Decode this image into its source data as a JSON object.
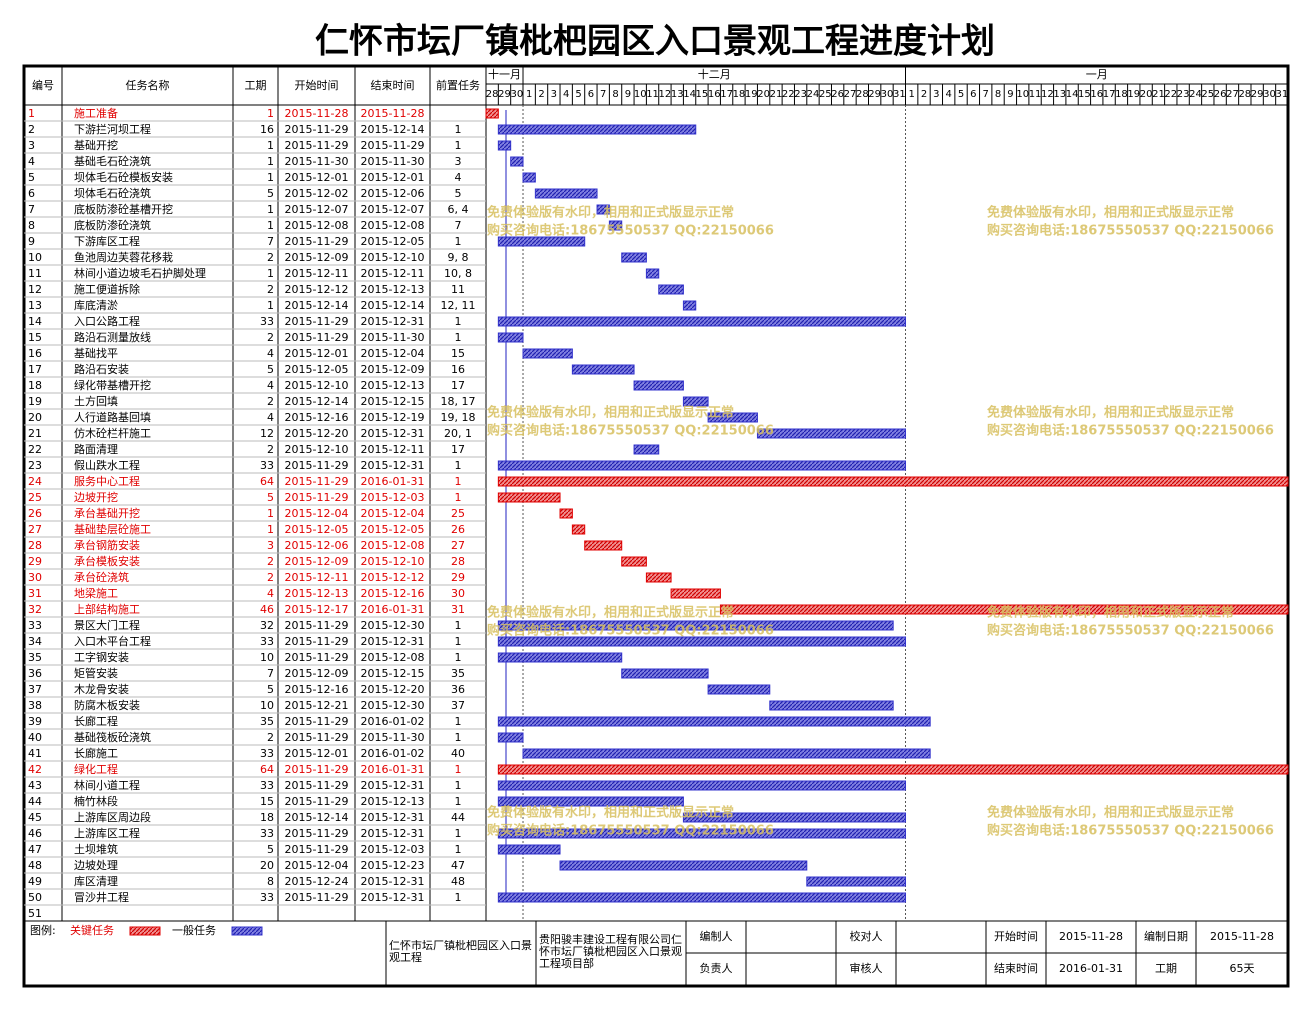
{
  "title": "仁怀市坛厂镇枇杷园区入口景观工程进度计划",
  "table": {
    "headers": [
      "编号",
      "任务名称",
      "工期",
      "开始时间",
      "结束时间",
      "前置任务"
    ],
    "rows": [
      {
        "cells": [
          1,
          "施工准备",
          1,
          "2015-11-28",
          "2015-11-28"
        ],
        "color": "#e00000"
      },
      {
        "cells": [
          2,
          "下游拦河坝工程",
          16,
          "2015-11-29",
          "2015-12-14",
          1
        ],
        "color": "#3333cc"
      },
      {
        "cells": [
          3,
          "基础开挖",
          1,
          "2015-11-29",
          "2015-11-29",
          1
        ],
        "color": "#3333cc"
      },
      {
        "cells": [
          4,
          "基础毛石砼浇筑",
          1,
          "2015-11-30",
          "2015-11-30",
          3
        ],
        "color": "#3333cc"
      },
      {
        "cells": [
          5,
          "坝体毛石砼模板安装",
          1,
          "2015-12-01",
          "2015-12-01",
          4
        ],
        "color": "#3333cc"
      },
      {
        "cells": [
          6,
          "坝体毛石砼浇筑",
          5,
          "2015-12-02",
          "2015-12-06",
          5
        ],
        "color": "#3333cc"
      },
      {
        "cells": [
          7,
          "底板防渗砼基槽开挖",
          1,
          "2015-12-07",
          "2015-12-07",
          "6, 4"
        ],
        "color": "#3333cc"
      },
      {
        "cells": [
          8,
          "底板防渗砼浇筑",
          1,
          "2015-12-08",
          "2015-12-08",
          7
        ],
        "color": "#3333cc"
      },
      {
        "cells": [
          9,
          "下游库区工程",
          7,
          "2015-11-29",
          "2015-12-05",
          1
        ],
        "color": "#3333cc"
      },
      {
        "cells": [
          10,
          "鱼池周边芙蓉花移栽",
          2,
          "2015-12-09",
          "2015-12-10",
          "9, 8"
        ],
        "color": "#3333cc"
      },
      {
        "cells": [
          11,
          "林间小道边坡毛石护脚处理",
          1,
          "2015-12-11",
          "2015-12-11",
          "10, 8"
        ],
        "color": "#3333cc"
      },
      {
        "cells": [
          12,
          "施工便道拆除",
          2,
          "2015-12-12",
          "2015-12-13",
          11
        ],
        "color": "#3333cc"
      },
      {
        "cells": [
          13,
          "库底清淤",
          1,
          "2015-12-14",
          "2015-12-14",
          "12, 11"
        ],
        "color": "#3333cc"
      },
      {
        "cells": [
          14,
          "入口公路工程",
          33,
          "2015-11-29",
          "2015-12-31",
          1
        ],
        "color": "#3333cc"
      },
      {
        "cells": [
          15,
          "路沿石测量放线",
          2,
          "2015-11-29",
          "2015-11-30",
          1
        ],
        "color": "#3333cc"
      },
      {
        "cells": [
          16,
          "基础找平",
          4,
          "2015-12-01",
          "2015-12-04",
          15
        ],
        "color": "#3333cc"
      },
      {
        "cells": [
          17,
          "路沿石安装",
          5,
          "2015-12-05",
          "2015-12-09",
          16
        ],
        "color": "#3333cc"
      },
      {
        "cells": [
          18,
          "绿化带基槽开挖",
          4,
          "2015-12-10",
          "2015-12-13",
          17
        ],
        "color": "#3333cc"
      },
      {
        "cells": [
          19,
          "土方回填",
          2,
          "2015-12-14",
          "2015-12-15",
          "18, 17"
        ],
        "color": "#3333cc"
      },
      {
        "cells": [
          20,
          "人行道路基回填",
          4,
          "2015-12-16",
          "2015-12-19",
          "19, 18"
        ],
        "color": "#3333cc"
      },
      {
        "cells": [
          21,
          "仿木砼栏杆施工",
          12,
          "2015-12-20",
          "2015-12-31",
          "20, 1"
        ],
        "color": "#3333cc"
      },
      {
        "cells": [
          22,
          "路面清理",
          2,
          "2015-12-10",
          "2015-12-11",
          17
        ],
        "color": "#3333cc"
      },
      {
        "cells": [
          23,
          "假山跌水工程",
          33,
          "2015-11-29",
          "2015-12-31",
          1
        ],
        "color": "#3333cc"
      },
      {
        "cells": [
          24,
          "服务中心工程",
          64,
          "2015-11-29",
          "2016-01-31",
          1
        ],
        "color": "#e00000"
      },
      {
        "cells": [
          25,
          "边坡开挖",
          5,
          "2015-11-29",
          "2015-12-03",
          1
        ],
        "color": "#e00000"
      },
      {
        "cells": [
          26,
          "承台基础开挖",
          1,
          "2015-12-04",
          "2015-12-04",
          25
        ],
        "color": "#e00000"
      },
      {
        "cells": [
          27,
          "基础垫层砼施工",
          1,
          "2015-12-05",
          "2015-12-05",
          26
        ],
        "color": "#e00000"
      },
      {
        "cells": [
          28,
          "承台钢筋安装",
          3,
          "2015-12-06",
          "2015-12-08",
          27
        ],
        "color": "#e00000"
      },
      {
        "cells": [
          29,
          "承台模板安装",
          2,
          "2015-12-09",
          "2015-12-10",
          28
        ],
        "color": "#e00000"
      },
      {
        "cells": [
          30,
          "承台砼浇筑",
          2,
          "2015-12-11",
          "2015-12-12",
          29
        ],
        "color": "#e00000"
      },
      {
        "cells": [
          31,
          "地梁施工",
          4,
          "2015-12-13",
          "2015-12-16",
          30
        ],
        "color": "#e00000"
      },
      {
        "cells": [
          32,
          "上部结构施工",
          46,
          "2015-12-17",
          "2016-01-31",
          31
        ],
        "color": "#e00000"
      },
      {
        "cells": [
          33,
          "景区大门工程",
          32,
          "2015-11-29",
          "2015-12-30",
          1
        ],
        "color": "#3333cc"
      },
      {
        "cells": [
          34,
          "入口木平台工程",
          33,
          "2015-11-29",
          "2015-12-31",
          1
        ],
        "color": "#3333cc"
      },
      {
        "cells": [
          35,
          "工字钢安装",
          10,
          "2015-11-29",
          "2015-12-08",
          1
        ],
        "color": "#3333cc"
      },
      {
        "cells": [
          36,
          "矩管安装",
          7,
          "2015-12-09",
          "2015-12-15",
          35
        ],
        "color": "#3333cc"
      },
      {
        "cells": [
          37,
          "木龙骨安装",
          5,
          "2015-12-16",
          "2015-12-20",
          36
        ],
        "color": "#3333cc"
      },
      {
        "cells": [
          38,
          "防腐木板安装",
          10,
          "2015-12-21",
          "2015-12-30",
          37
        ],
        "color": "#3333cc"
      },
      {
        "cells": [
          39,
          "长廊工程",
          35,
          "2015-11-29",
          "2016-01-02",
          1
        ],
        "color": "#3333cc"
      },
      {
        "cells": [
          40,
          "基础筏板砼浇筑",
          2,
          "2015-11-29",
          "2015-11-30",
          1
        ],
        "color": "#3333cc"
      },
      {
        "cells": [
          41,
          "长廊施工",
          33,
          "2015-12-01",
          "2016-01-02",
          40
        ],
        "color": "#3333cc"
      },
      {
        "cells": [
          42,
          "绿化工程",
          64,
          "2015-11-29",
          "2016-01-31",
          1
        ],
        "color": "#e00000"
      },
      {
        "cells": [
          43,
          "林间小道工程",
          33,
          "2015-11-29",
          "2015-12-31",
          1
        ],
        "color": "#3333cc"
      },
      {
        "cells": [
          44,
          "楠竹林段",
          15,
          "2015-11-29",
          "2015-12-13",
          1
        ],
        "color": "#3333cc"
      },
      {
        "cells": [
          45,
          "上游库区周边段",
          18,
          "2015-12-14",
          "2015-12-31",
          44
        ],
        "color": "#3333cc"
      },
      {
        "cells": [
          46,
          "上游库区工程",
          33,
          "2015-11-29",
          "2015-12-31",
          1
        ],
        "color": "#3333cc"
      },
      {
        "cells": [
          47,
          "土坝堆筑",
          5,
          "2015-11-29",
          "2015-12-03",
          1
        ],
        "color": "#3333cc"
      },
      {
        "cells": [
          48,
          "边坡处理",
          20,
          "2015-12-04",
          "2015-12-23",
          47
        ],
        "color": "#3333cc"
      },
      {
        "cells": [
          49,
          "库区清理",
          8,
          "2015-12-24",
          "2015-12-31",
          48
        ],
        "color": "#3333cc"
      },
      {
        "cells": [
          50,
          "冒沙井工程",
          33,
          "2015-11-29",
          "2015-12-31",
          1
        ],
        "color": "#3333cc"
      },
      {
        "cells": [
          51
        ]
      }
    ]
  },
  "timeline": {
    "months": [
      "十一月",
      "十二月",
      "一月"
    ],
    "days": [
      28,
      29,
      30,
      1,
      2,
      3,
      4,
      5,
      6,
      7,
      8,
      9,
      10,
      11,
      12,
      13,
      14,
      15,
      16,
      17,
      18,
      19,
      20,
      21,
      22,
      23,
      24,
      25,
      26,
      27,
      28,
      29,
      30,
      31,
      1,
      2,
      3,
      4,
      5,
      6,
      7,
      8,
      9,
      10,
      11,
      12,
      13,
      14,
      15,
      16,
      17,
      18,
      19,
      20,
      21,
      22,
      23,
      24,
      25,
      26,
      27,
      28,
      29,
      30,
      31
    ]
  },
  "watermark": [
    "免费体验版有水印，相用和正式版显示正常",
    "购买咨询电话:18675550537 QQ:22150066"
  ],
  "footer": {
    "legend_label": "图例:",
    "legend": [
      {
        "name": "关键任务",
        "color": "#e00000"
      },
      {
        "name": "一般任务",
        "color": "#3333cc"
      }
    ],
    "project": "仁怀市坛厂镇枇杷园区入口景观工程",
    "company": "贵阳骏丰建设工程有限公司仁怀市坛厂镇枇杷园区入口景观工程项目部",
    "compiler_label": "编制人",
    "checker_label": "校对人",
    "manager_label": "负责人",
    "reviewer_label": "审核人",
    "start_label": "开始时间",
    "start": "2015-11-28",
    "end_label": "结束时间",
    "end": "2016-01-31",
    "date_label": "编制日期",
    "date": "2015-11-28",
    "duration_label": "工期",
    "duration": "65天"
  }
}
